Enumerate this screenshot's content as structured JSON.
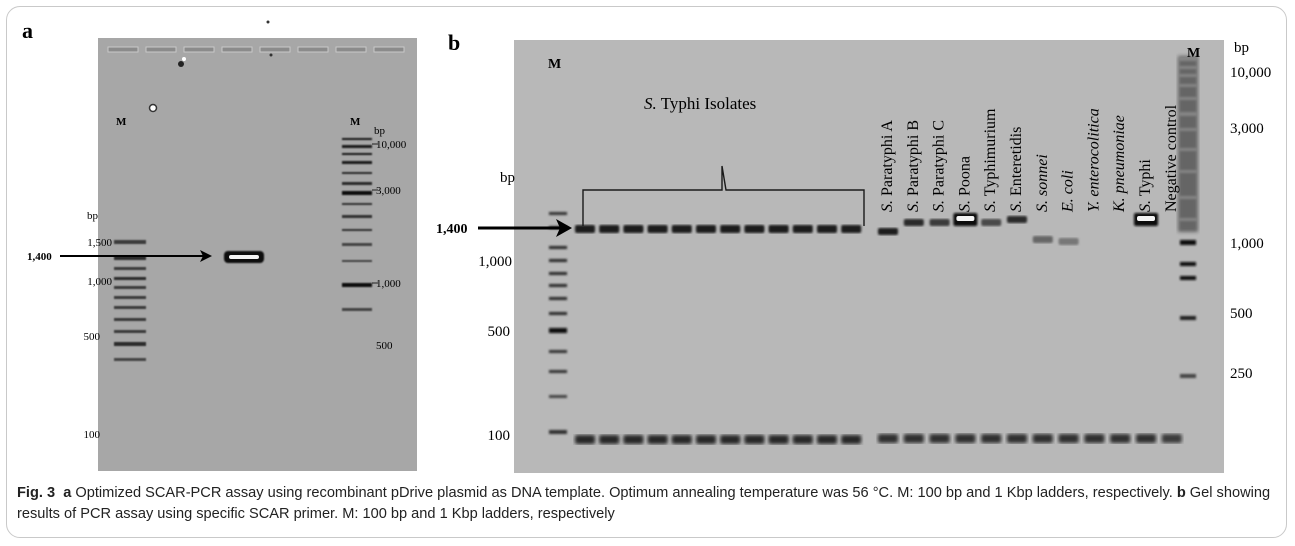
{
  "panel_a": {
    "letter": "a",
    "lane_marker_left": "M",
    "lane_marker_right": "M",
    "bp_unit_left": "bp",
    "bp_unit_right": "bp",
    "left_ladder_labels": [
      "1,500",
      "1,000",
      "500",
      "100"
    ],
    "right_ladder_labels": [
      "10,000",
      "3,000",
      "1,000",
      "500"
    ],
    "target_band_label": "1,400"
  },
  "panel_b": {
    "letter": "b",
    "lane_marker_left": "M",
    "lane_marker_right": "M",
    "bp_unit_left": "bp",
    "bp_unit_right": "bp",
    "isolates_label_italic": "S.",
    "isolates_label_rest": " Typhi Isolates",
    "left_ladder_labels": [
      "1,000",
      "500",
      "100"
    ],
    "right_ladder_labels": [
      "10,000",
      "3,000",
      "1,000",
      "500",
      "250"
    ],
    "target_band_label": "1,400",
    "lane_labels": [
      {
        "italic": "S.",
        "rest": " Paratyphi A"
      },
      {
        "italic": "S.",
        "rest": " Paratyphi B"
      },
      {
        "italic": "S.",
        "rest": " Paratyphi C"
      },
      {
        "italic": "S.",
        "rest": " Poona"
      },
      {
        "italic": "S.",
        "rest": " Typhimurium"
      },
      {
        "italic": "S.",
        "rest": " Enteretidis"
      },
      {
        "italic": "S. sonnei",
        "rest": ""
      },
      {
        "italic": "E. coli",
        "rest": ""
      },
      {
        "italic": "Y. enterocolitica",
        "rest": ""
      },
      {
        "italic": "K. pneumoniae",
        "rest": ""
      },
      {
        "italic": "S.",
        "rest": " Typhi"
      },
      {
        "italic": "",
        "rest": "Negative control"
      }
    ]
  },
  "caption": {
    "fig_label": "Fig. 3",
    "a_letter": "a",
    "a_text": " Optimized SCAR-PCR assay using recombinant pDrive plasmid as DNA template. Optimum annealing temperature was 56 °C. M: 100 bp and 1 Kbp ladders, respectively. ",
    "b_letter": "b",
    "b_text": " Gel showing results of PCR assay using specific SCAR primer. M: 100 bp and 1 Kbp ladders, respectively"
  },
  "colors": {
    "gel_a_background": "#a7a7a7",
    "gel_b_background": "#b8b8b8",
    "band_dark": "#1e1e1e",
    "band_bright": "#f6f6f6",
    "caption_text": "#222222"
  }
}
